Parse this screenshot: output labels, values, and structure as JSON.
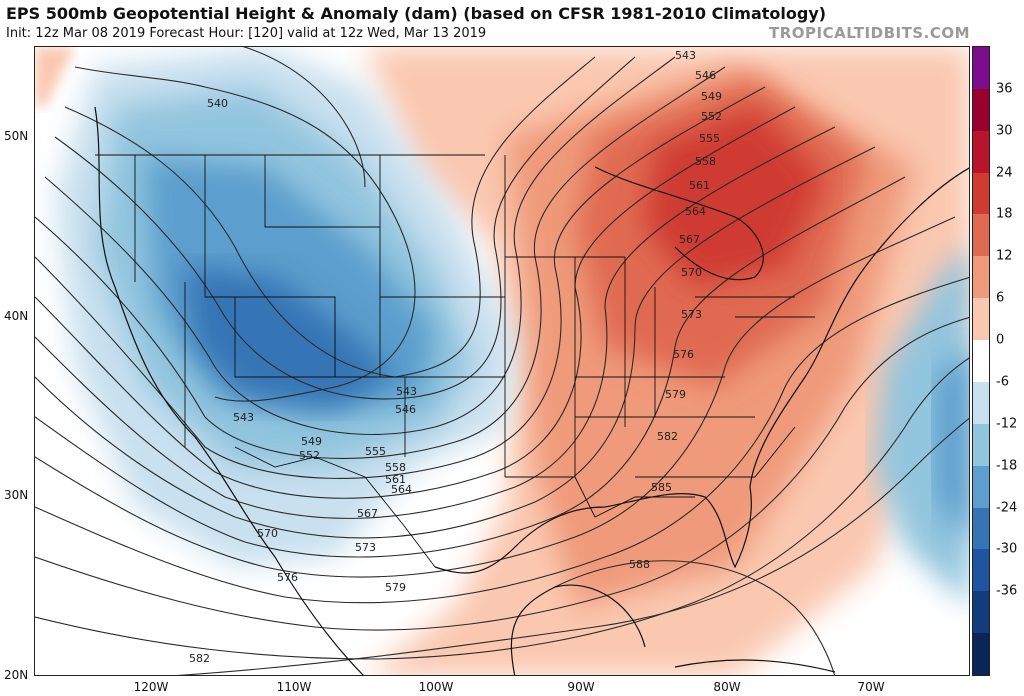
{
  "header": {
    "title": "EPS 500mb Geopotential Height & Anomaly (dam) (based on CFSR 1981-2010 Climatology)",
    "subtitle": "Init: 12z Mar 08 2019   Forecast Hour: [120]   valid at 12z Wed, Mar 13 2019",
    "brand": "TROPICALTIDBITS.COM"
  },
  "map": {
    "lat_labels": [
      "50N",
      "40N",
      "30N",
      "20N"
    ],
    "lon_labels": [
      "120W",
      "110W",
      "100W",
      "90W",
      "80W",
      "70W"
    ],
    "contour_labels": [
      "540",
      "543",
      "546",
      "549",
      "552",
      "555",
      "558",
      "561",
      "564",
      "567",
      "570",
      "573",
      "576",
      "579",
      "582",
      "585",
      "588"
    ],
    "anomaly_features": [
      {
        "name": "western-trough",
        "color": "#2166ac"
      },
      {
        "name": "eastern-ridge",
        "color": "#d6604d"
      },
      {
        "name": "atlantic-trough",
        "color": "#67a9cf"
      }
    ]
  },
  "colorbar": {
    "labels": [
      "36",
      "30",
      "24",
      "18",
      "12",
      "6",
      "0",
      "-6",
      "-12",
      "-18",
      "-24",
      "-30",
      "-36"
    ],
    "colors": [
      "#7b0c8c",
      "#99002e",
      "#b8152c",
      "#cf3b33",
      "#e06a51",
      "#ef9a7a",
      "#fac8b0",
      "#ffffff",
      "#c9e0ef",
      "#92c5de",
      "#5c9ecd",
      "#3575b5",
      "#1f55a0",
      "#123c7c",
      "#0a2558"
    ]
  }
}
